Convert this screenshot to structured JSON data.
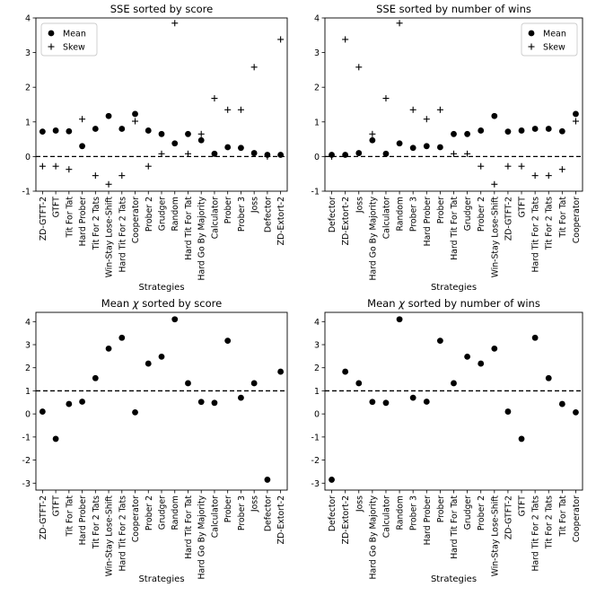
{
  "chart_data": [
    {
      "type": "scatter",
      "title": "SSE sorted by score",
      "xlabel": "Strategies",
      "ylabel": "",
      "ylim": [
        -1,
        4
      ],
      "yticks": [
        -1,
        0,
        1,
        2,
        3,
        4
      ],
      "reference_line": 0,
      "legend": "top-left",
      "categories": [
        "ZD-GTFT-2",
        "GTFT",
        "Tit For Tat",
        "Hard Prober",
        "Tit For 2 Tats",
        "Win-Stay Lose-Shift",
        "Hard Tit For 2 Tats",
        "Cooperator",
        "Prober 2",
        "Grudger",
        "Random",
        "Hard Tit For Tat",
        "Hard Go By Majority",
        "Calculator",
        "Prober",
        "Prober 3",
        "Joss",
        "Defector",
        "ZD-Extort-2"
      ],
      "series": [
        {
          "name": "Mean",
          "marker": "dot",
          "values": [
            0.72,
            0.75,
            0.73,
            0.3,
            0.8,
            1.17,
            0.8,
            1.23,
            0.75,
            0.65,
            0.38,
            0.65,
            0.47,
            0.08,
            0.27,
            0.25,
            0.1,
            0.05,
            0.05
          ]
        },
        {
          "name": "Skew",
          "marker": "plus",
          "values": [
            -0.28,
            -0.28,
            -0.37,
            1.08,
            -0.55,
            -0.8,
            -0.55,
            1.02,
            -0.28,
            0.08,
            3.85,
            0.08,
            0.65,
            1.68,
            1.35,
            1.35,
            2.58,
            0.0,
            3.38
          ]
        }
      ]
    },
    {
      "type": "scatter",
      "title": "SSE sorted by number of wins",
      "xlabel": "Strategies",
      "ylabel": "",
      "ylim": [
        -1,
        4
      ],
      "yticks": [
        -1,
        0,
        1,
        2,
        3,
        4
      ],
      "reference_line": 0,
      "legend": "top-right",
      "categories": [
        "Defector",
        "ZD-Extort-2",
        "Joss",
        "Hard Go By Majority",
        "Calculator",
        "Random",
        "Prober 3",
        "Hard Prober",
        "Prober",
        "Hard Tit For Tat",
        "Grudger",
        "Prober 2",
        "Win-Stay Lose-Shift",
        "ZD-GTFT-2",
        "GTFT",
        "Hard Tit For 2 Tats",
        "Tit For 2 Tats",
        "Tit For Tat",
        "Cooperator"
      ],
      "series": [
        {
          "name": "Mean",
          "marker": "dot",
          "values": [
            0.05,
            0.05,
            0.1,
            0.47,
            0.08,
            0.38,
            0.25,
            0.3,
            0.27,
            0.65,
            0.65,
            0.75,
            1.17,
            0.72,
            0.75,
            0.8,
            0.8,
            0.73,
            1.23
          ]
        },
        {
          "name": "Skew",
          "marker": "plus",
          "values": [
            0.0,
            3.38,
            2.58,
            0.65,
            1.68,
            3.85,
            1.35,
            1.08,
            1.35,
            0.08,
            0.08,
            -0.28,
            -0.8,
            -0.28,
            -0.28,
            -0.55,
            -0.55,
            -0.37,
            1.02
          ]
        }
      ]
    },
    {
      "type": "scatter",
      "title": "Mean χ sorted by score",
      "title_prefix": "Mean ",
      "title_symbol": "χ",
      "title_suffix": " sorted by score",
      "xlabel": "Strategies",
      "ylabel": "",
      "ylim": [
        -3.3,
        4.4
      ],
      "yticks": [
        -3,
        -2,
        -1,
        0,
        1,
        2,
        3,
        4
      ],
      "reference_line": 1,
      "categories": [
        "ZD-GTFT-2",
        "GTFT",
        "Tit For Tat",
        "Hard Prober",
        "Tit For 2 Tats",
        "Win-Stay Lose-Shift",
        "Hard Tit For 2 Tats",
        "Cooperator",
        "Prober 2",
        "Grudger",
        "Random",
        "Hard Tit For Tat",
        "Hard Go By Majority",
        "Calculator",
        "Prober",
        "Prober 3",
        "Joss",
        "Defector",
        "ZD-Extort-2"
      ],
      "series": [
        {
          "name": "Mean χ",
          "marker": "dot",
          "values": [
            0.1,
            -1.08,
            0.43,
            0.53,
            1.55,
            2.83,
            3.3,
            0.07,
            2.18,
            2.48,
            4.1,
            1.33,
            0.52,
            0.48,
            3.17,
            0.7,
            1.33,
            -2.85,
            1.83
          ]
        }
      ]
    },
    {
      "type": "scatter",
      "title": "Mean χ sorted by number of wins",
      "title_prefix": "Mean ",
      "title_symbol": "χ",
      "title_suffix": " sorted by number of wins",
      "xlabel": "Strategies",
      "ylabel": "",
      "ylim": [
        -3.3,
        4.4
      ],
      "yticks": [
        -3,
        -2,
        -1,
        0,
        1,
        2,
        3,
        4
      ],
      "reference_line": 1,
      "categories": [
        "Defector",
        "ZD-Extort-2",
        "Joss",
        "Hard Go By Majority",
        "Calculator",
        "Random",
        "Prober 3",
        "Hard Prober",
        "Prober",
        "Hard Tit For Tat",
        "Grudger",
        "Prober 2",
        "Win-Stay Lose-Shift",
        "ZD-GTFT-2",
        "GTFT",
        "Hard Tit For 2 Tats",
        "Tit For 2 Tats",
        "Tit For Tat",
        "Cooperator"
      ],
      "series": [
        {
          "name": "Mean χ",
          "marker": "dot",
          "values": [
            -2.85,
            1.83,
            1.33,
            0.52,
            0.48,
            4.1,
            0.7,
            0.53,
            3.17,
            1.33,
            2.48,
            2.18,
            2.83,
            0.1,
            -1.08,
            3.3,
            1.55,
            0.43,
            0.07
          ]
        }
      ]
    }
  ]
}
